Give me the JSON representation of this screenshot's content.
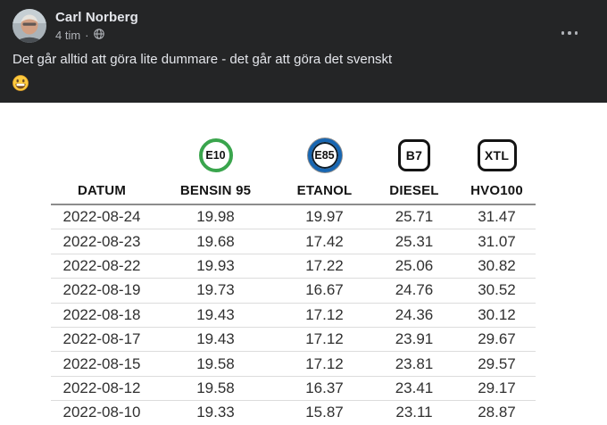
{
  "post": {
    "author": "Carl Norberg",
    "time": "4 tim",
    "separator": "·",
    "audience": "public",
    "text": "Det går alltid att göra lite dummare - det går att göra det svenskt",
    "emoji": "grinning-face",
    "more_options": "more-options"
  },
  "colors": {
    "card_background": "#242526",
    "primary_text_dark_mode": "#e4e6eb",
    "secondary_text_dark_mode": "#b0b3b8",
    "e10_badge_green": "#3aa54d",
    "e85_badge_blue": "#1766b2",
    "b7_xtl_badge_black": "#141414",
    "header_underline": "#8c8c8c",
    "row_divider": "#dcdcdc"
  },
  "fuel_table": {
    "badges": [
      {
        "code": "E10",
        "shape": "circle"
      },
      {
        "code": "E85",
        "shape": "circle"
      },
      {
        "code": "B7",
        "shape": "square"
      },
      {
        "code": "XTL",
        "shape": "square"
      }
    ],
    "headers": [
      "DATUM",
      "BENSIN 95",
      "ETANOL",
      "DIESEL",
      "HVO100"
    ],
    "rows": [
      [
        "2022-08-24",
        "19.98",
        "19.97",
        "25.71",
        "31.47"
      ],
      [
        "2022-08-23",
        "19.68",
        "17.42",
        "25.31",
        "31.07"
      ],
      [
        "2022-08-22",
        "19.93",
        "17.22",
        "25.06",
        "30.82"
      ],
      [
        "2022-08-19",
        "19.73",
        "16.67",
        "24.76",
        "30.52"
      ],
      [
        "2022-08-18",
        "19.43",
        "17.12",
        "24.36",
        "30.12"
      ],
      [
        "2022-08-17",
        "19.43",
        "17.12",
        "23.91",
        "29.67"
      ],
      [
        "2022-08-15",
        "19.58",
        "17.12",
        "23.81",
        "29.57"
      ],
      [
        "2022-08-12",
        "19.58",
        "16.37",
        "23.41",
        "29.17"
      ],
      [
        "2022-08-10",
        "19.33",
        "15.87",
        "23.11",
        "28.87"
      ]
    ]
  }
}
